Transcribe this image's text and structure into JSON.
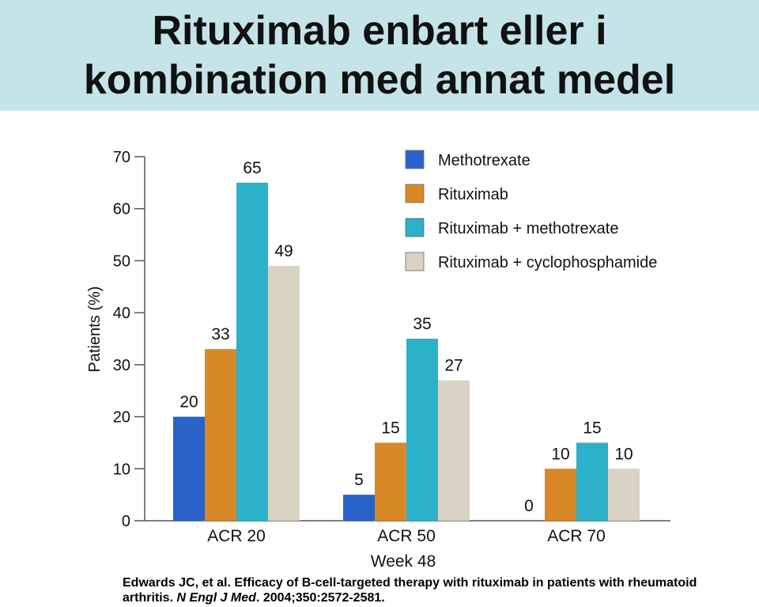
{
  "title_line1": "Rituximab enbart eller i",
  "title_line2": "kombination med annat medel",
  "chart_data": {
    "type": "bar",
    "ylabel": "Patients (%)",
    "xlabel": "Week 48",
    "ylim": [
      0,
      70
    ],
    "yticks": [
      0,
      10,
      20,
      30,
      40,
      50,
      60,
      70
    ],
    "categories": [
      "ACR 20",
      "ACR 50",
      "ACR 70"
    ],
    "series": [
      {
        "name": "Methotrexate",
        "color": "#2a62c9",
        "values": [
          20,
          5,
          0
        ]
      },
      {
        "name": "Rituximab",
        "color": "#d88826",
        "values": [
          33,
          15,
          10
        ]
      },
      {
        "name": "Rituximab + methotrexate",
        "color": "#2bb1c9",
        "values": [
          65,
          35,
          15
        ]
      },
      {
        "name": "Rituximab + cyclophosphamide",
        "color": "#d9d3c3",
        "values": [
          49,
          27,
          10
        ]
      }
    ],
    "legend_position": "top-right",
    "grid": false
  },
  "reference": {
    "part1": "Edwards JC, et al. Efficacy of B-cell-targeted therapy with rituximab in patients with rheumatoid arthritis.",
    "journal": "N Engl J Med",
    "part2": ". 2004;350:2572-2581."
  }
}
